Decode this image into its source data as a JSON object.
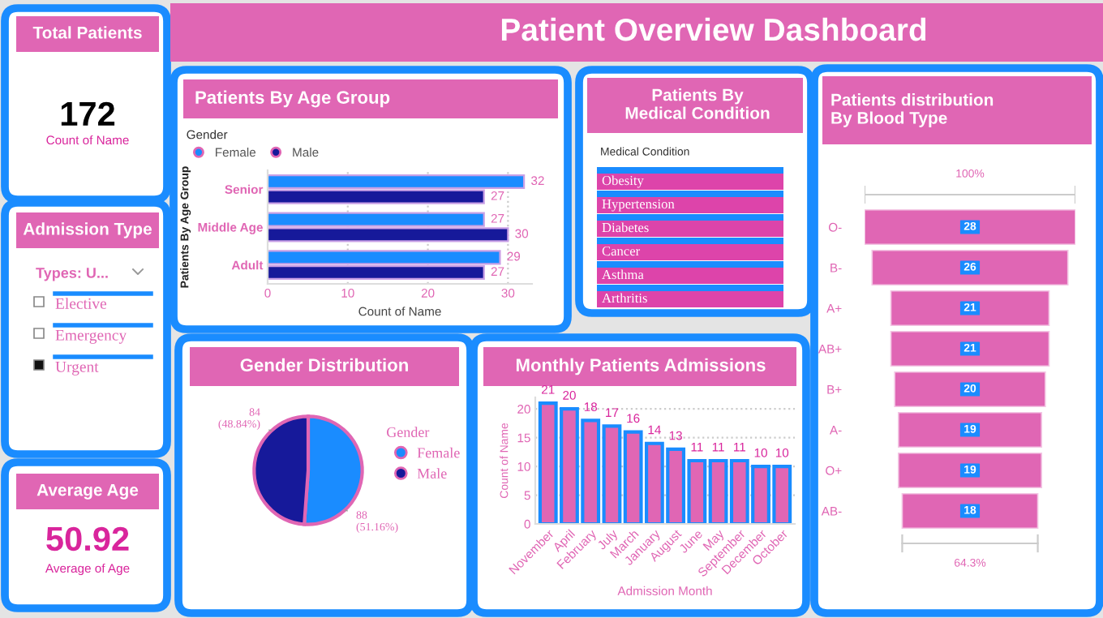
{
  "chart_data": [
    {
      "type": "other",
      "title": "Patient Overview Dashboard"
    },
    {
      "type": "other",
      "title": "Total Patients",
      "annotations": [
        "172",
        "Count of Name"
      ]
    },
    {
      "type": "bar",
      "title": "Patients By Age Group",
      "orientation": "horizontal",
      "categories": [
        "Senior",
        "Middle Age",
        "Adult"
      ],
      "series": [
        {
          "name": "Female",
          "color": "#1a8cff",
          "values": [
            32,
            27,
            29
          ]
        },
        {
          "name": "Male",
          "color": "#16199a",
          "values": [
            27,
            30,
            27
          ]
        }
      ],
      "xlim": [
        0,
        33
      ],
      "xticks": [
        0,
        10,
        20,
        30
      ],
      "xlabel": "Count of Name",
      "ylabel": "Patients By Age Group",
      "legend_title": "Gender",
      "legend": "top left",
      "grid": "x",
      "data_labels": true
    },
    {
      "type": "other",
      "title": "Patients By Medical Condition",
      "annotations": [
        "Medical Condition",
        "Obesity",
        "Hypertension",
        "Diabetes",
        "Cancer",
        "Asthma",
        "Arthritis"
      ]
    },
    {
      "type": "other",
      "title": "Patients distribution By Blood Type",
      "categories": [
        "O-",
        "B-",
        "A+",
        "AB+",
        "B+",
        "A-",
        "O+",
        "AB-"
      ],
      "values": [
        28,
        26,
        21,
        21,
        20,
        19,
        19,
        18
      ],
      "data_labels": true,
      "annotations": [
        "100%",
        "64.3%"
      ]
    },
    {
      "type": "other",
      "title": "Admission Type",
      "annotations": [
        "Types: U...",
        "Elective",
        "Emergency",
        "Urgent"
      ]
    },
    {
      "type": "pie",
      "title": "Gender Distribution",
      "categories": [
        "Female",
        "Male"
      ],
      "values": [
        88,
        84
      ],
      "colors": [
        "#1a8cff",
        "#16199a"
      ],
      "value_labels": [
        "88\n(51.16%)",
        "84\n(48.84%)"
      ],
      "legend_title": "Gender",
      "legend": "right"
    },
    {
      "type": "bar",
      "title": "Monthly Patients Admissions",
      "categories": [
        "November",
        "April",
        "February",
        "July",
        "March",
        "January",
        "August",
        "June",
        "May",
        "September",
        "December",
        "October"
      ],
      "values": [
        21,
        20,
        18,
        17,
        16,
        14,
        13,
        11,
        11,
        11,
        10,
        10
      ],
      "color": "#e066b4",
      "ylim": [
        0,
        22
      ],
      "yticks": [
        0,
        5,
        10,
        15,
        20
      ],
      "xlabel": "Admission Month",
      "ylabel": "Count of Name",
      "grid": "y",
      "data_labels": true
    },
    {
      "type": "other",
      "title": "Average Age",
      "annotations": [
        "50.92",
        "Average of Age"
      ]
    }
  ]
}
